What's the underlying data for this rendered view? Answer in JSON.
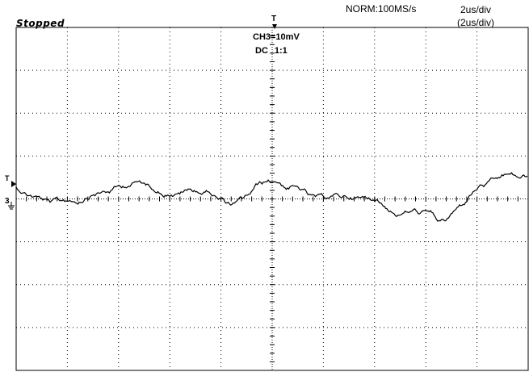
{
  "status": "Stopped",
  "acquisition": {
    "mode_rate": "NORM:100MS/s"
  },
  "timebase": {
    "main": "2us/div",
    "delayed": "(2us/div)"
  },
  "channel": {
    "scale": "CH3=10mV",
    "coupling": "DC",
    "probe_ratio": "1:1",
    "marker": "3"
  },
  "trigger": {
    "position_marker": "T",
    "level_marker": "T"
  },
  "grid": {
    "divisions_x": 10,
    "divisions_y": 8
  }
}
